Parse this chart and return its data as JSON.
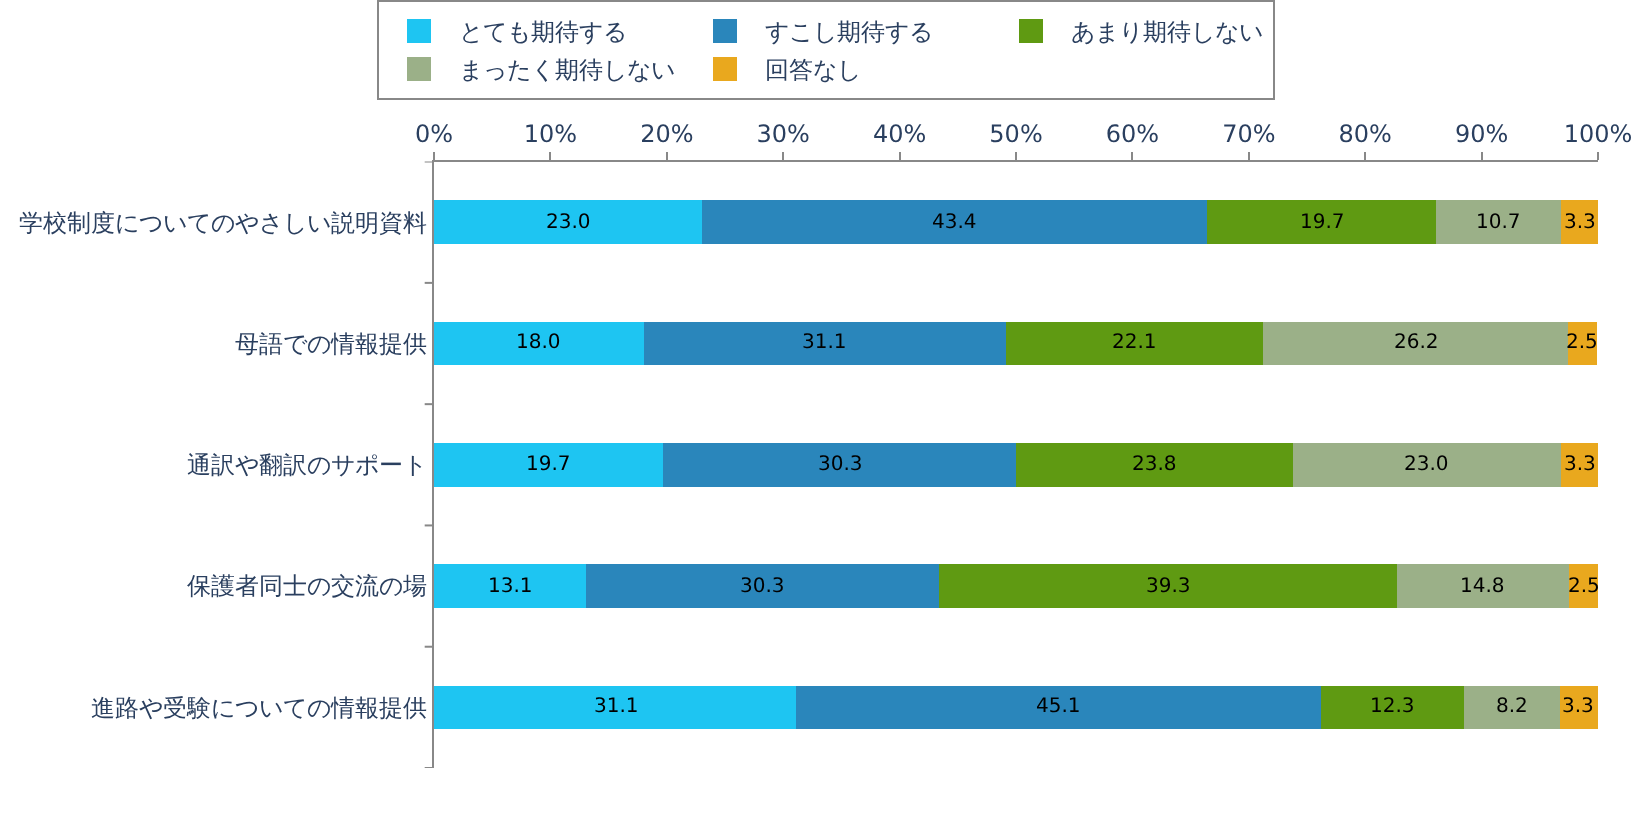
{
  "chart_data": {
    "type": "bar",
    "orientation": "horizontal",
    "stacked": true,
    "categories": [
      "学校制度についてのやさしい説明資料",
      "母語での情報提供",
      "通訳や翻訳のサポート",
      "保護者同士の交流の場",
      "進路や受験についての情報提供"
    ],
    "series": [
      {
        "name": "とても期待する",
        "color": "#1ec5f2",
        "values": [
          23.0,
          18.0,
          19.7,
          13.1,
          31.1
        ],
        "value_labels": [
          "23.0",
          "18.0",
          "19.7",
          "13.1",
          "31.1"
        ]
      },
      {
        "name": "すこし期待する",
        "color": "#2a86bb",
        "values": [
          43.4,
          31.1,
          30.3,
          30.3,
          45.1
        ],
        "value_labels": [
          "43.4",
          "31.1",
          "30.3",
          "30.3",
          "45.1"
        ]
      },
      {
        "name": "あまり期待しない",
        "color": "#5f9a12",
        "values": [
          19.7,
          22.1,
          23.8,
          39.3,
          12.3
        ],
        "value_labels": [
          "19.7",
          "22.1",
          "23.8",
          "39.3",
          "12.3"
        ]
      },
      {
        "name": "まったく期待しない",
        "color": "#9bb088",
        "values": [
          10.7,
          26.2,
          23.0,
          14.8,
          8.2
        ],
        "value_labels": [
          "10.7",
          "26.2",
          "23.0",
          "14.8",
          "8.2"
        ]
      },
      {
        "name": "回答なし",
        "color": "#e9a81e",
        "values": [
          3.3,
          2.5,
          3.3,
          2.5,
          3.3
        ],
        "value_labels": [
          "3.3",
          "2.5",
          "3.3",
          "2.5",
          "3.3"
        ]
      }
    ],
    "xlim": [
      0,
      100
    ],
    "xticks": [
      {
        "value": 0,
        "label": "0%"
      },
      {
        "value": 10,
        "label": "10%"
      },
      {
        "value": 20,
        "label": "20%"
      },
      {
        "value": 30,
        "label": "30%"
      },
      {
        "value": 40,
        "label": "40%"
      },
      {
        "value": 50,
        "label": "50%"
      },
      {
        "value": 60,
        "label": "60%"
      },
      {
        "value": 70,
        "label": "70%"
      },
      {
        "value": 80,
        "label": "80%"
      },
      {
        "value": 90,
        "label": "90%"
      },
      {
        "value": 100,
        "label": "100%"
      }
    ],
    "legend": "top"
  }
}
